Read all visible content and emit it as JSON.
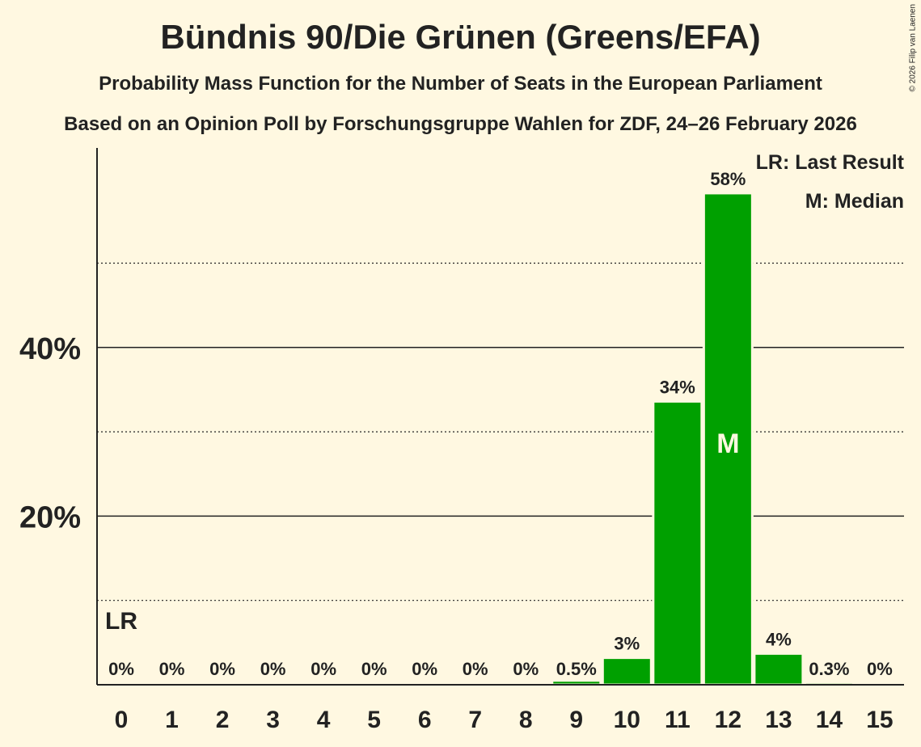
{
  "chart_data": {
    "type": "bar",
    "title": "Bündnis 90/Die Grünen (Greens/EFA)",
    "subtitle": "Probability Mass Function for the Number of Seats in the European Parliament",
    "subtitle2": "Based on an Opinion Poll by Forschungsgruppe Wahlen for ZDF, 24–26 February 2026",
    "categories": [
      "0",
      "1",
      "2",
      "3",
      "4",
      "5",
      "6",
      "7",
      "8",
      "9",
      "10",
      "11",
      "12",
      "13",
      "14",
      "15"
    ],
    "values": [
      0,
      0,
      0,
      0,
      0,
      0,
      0,
      0,
      0,
      0.5,
      3.2,
      33.6,
      58.3,
      3.7,
      0.3,
      0
    ],
    "data_labels": [
      "0%",
      "0%",
      "0%",
      "0%",
      "0%",
      "0%",
      "0%",
      "0%",
      "0%",
      "0.5%",
      "3%",
      "34%",
      "58%",
      "4%",
      "0.3%",
      "0%"
    ],
    "ylim": [
      0,
      63
    ],
    "yticks": [
      {
        "value": 20,
        "label": "20%"
      },
      {
        "value": 40,
        "label": "40%"
      }
    ],
    "minor_gridlines": [
      10,
      30,
      50
    ],
    "last_result": {
      "category": "0",
      "label": "LR"
    },
    "median": {
      "category": "12",
      "label": "M"
    },
    "legend": [
      "LR: Last Result",
      "M: Median"
    ],
    "legend_position": "top-right",
    "bar_color": "#00a000",
    "copyright": "© 2026 Filip van Laenen"
  }
}
